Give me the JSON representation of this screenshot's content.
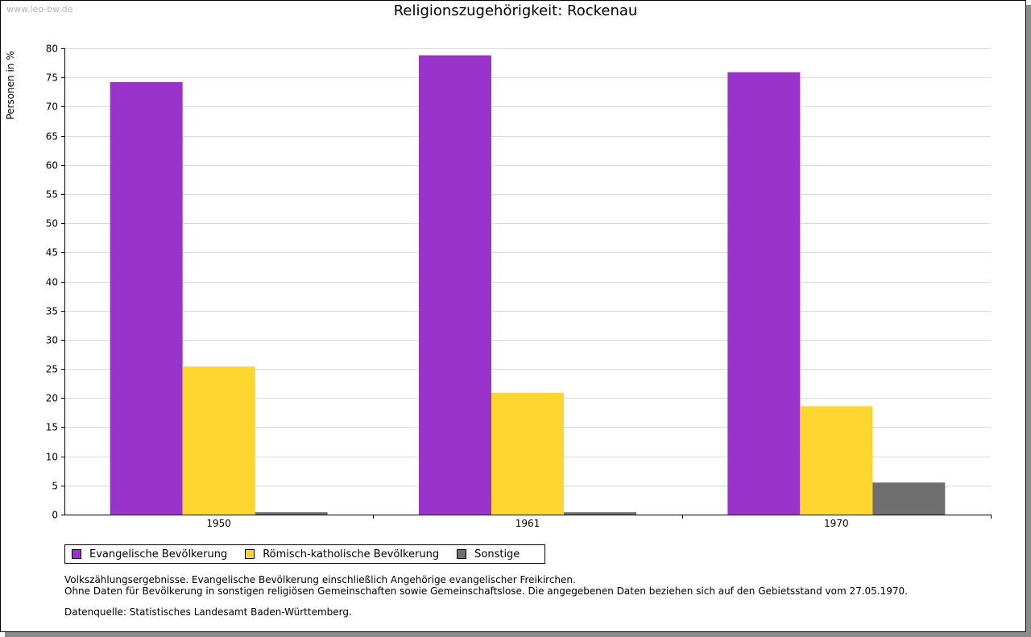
{
  "watermark": "www.leo-bw.de",
  "chart_data": {
    "type": "bar",
    "title": "Religionszugehörigkeit: Rockenau",
    "xlabel": "",
    "ylabel": "Personen in %",
    "ylim": [
      0,
      80
    ],
    "yticks": [
      0,
      5,
      10,
      15,
      20,
      25,
      30,
      35,
      40,
      45,
      50,
      55,
      60,
      65,
      70,
      75,
      80
    ],
    "grid": true,
    "categories": [
      "1950",
      "1961",
      "1970"
    ],
    "series": [
      {
        "name": "Evangelische Bevölkerung",
        "color": "#9933cc",
        "values": [
          74.2,
          78.8,
          75.9
        ]
      },
      {
        "name": "Römisch-katholische Bevölkerung",
        "color": "#fcd52e",
        "values": [
          25.4,
          20.9,
          18.6
        ]
      },
      {
        "name": "Sonstige",
        "color": "#6f6f6f",
        "values": [
          0.4,
          0.4,
          5.5
        ]
      }
    ],
    "legend_position": "bottom-left"
  },
  "notes": {
    "line1": "Volkszählungsergebnisse. Evangelische Bevölkerung einschließlich Angehörige evangelischer Freikirchen.",
    "line2": "Ohne Daten für Bevölkerung in sonstigen religiösen Gemeinschaften sowie Gemeinschaftslose. Die angegebenen Daten beziehen sich auf den Gebietsstand vom 27.05.1970.",
    "source": "Datenquelle: Statistisches Landesamt Baden-Württemberg."
  }
}
